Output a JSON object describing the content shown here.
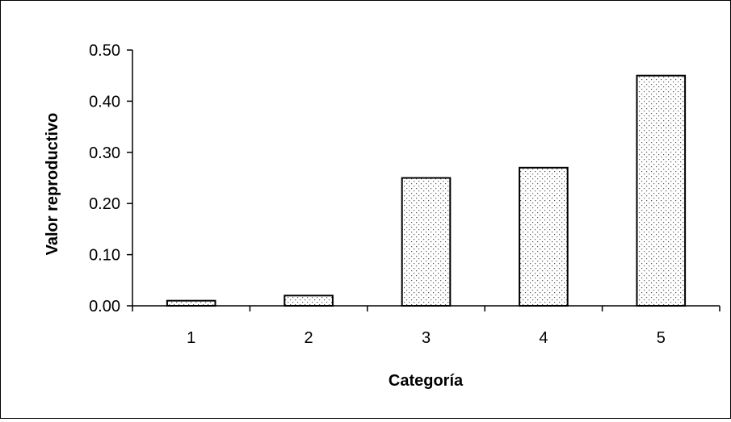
{
  "chart_data": {
    "type": "bar",
    "categories": [
      "1",
      "2",
      "3",
      "4",
      "5"
    ],
    "values": [
      0.01,
      0.02,
      0.25,
      0.27,
      0.45
    ],
    "title": "",
    "xlabel": "Categoría",
    "ylabel": "Valor reproductivo",
    "ylim": [
      0,
      0.5
    ],
    "yticks": [
      "0.00",
      "0.10",
      "0.20",
      "0.30",
      "0.40",
      "0.50"
    ],
    "grid": false,
    "legend": "none",
    "bar_fill": "dotted pattern",
    "colors": {
      "bar_outline": "#000000",
      "dots": "#555555",
      "background": "#ffffff"
    }
  }
}
